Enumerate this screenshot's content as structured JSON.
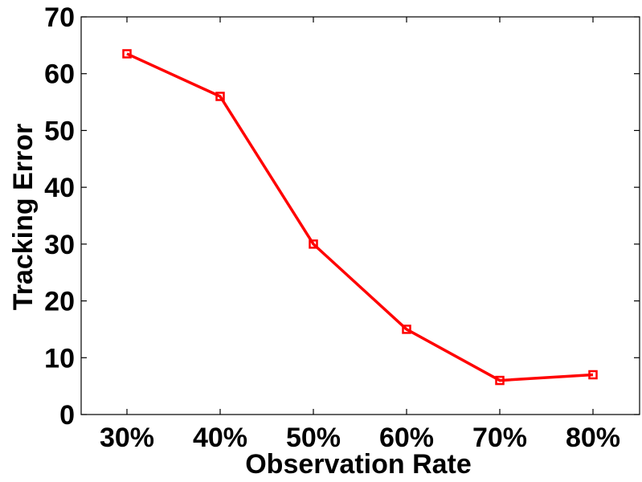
{
  "chart_data": {
    "type": "line",
    "title": "",
    "xlabel": "Observation Rate",
    "ylabel": "Tracking Error",
    "categories": [
      "30%",
      "40%",
      "50%",
      "60%",
      "70%",
      "80%"
    ],
    "series": [
      {
        "values": [
          63.5,
          56.0,
          30.0,
          15.0,
          6.0,
          7.0
        ],
        "color": "#ff0000",
        "marker": "square"
      }
    ],
    "ylim": [
      0,
      70
    ],
    "yticks": [
      0,
      10,
      20,
      30,
      40,
      50,
      60,
      70
    ],
    "grid": false,
    "legend": "none"
  }
}
